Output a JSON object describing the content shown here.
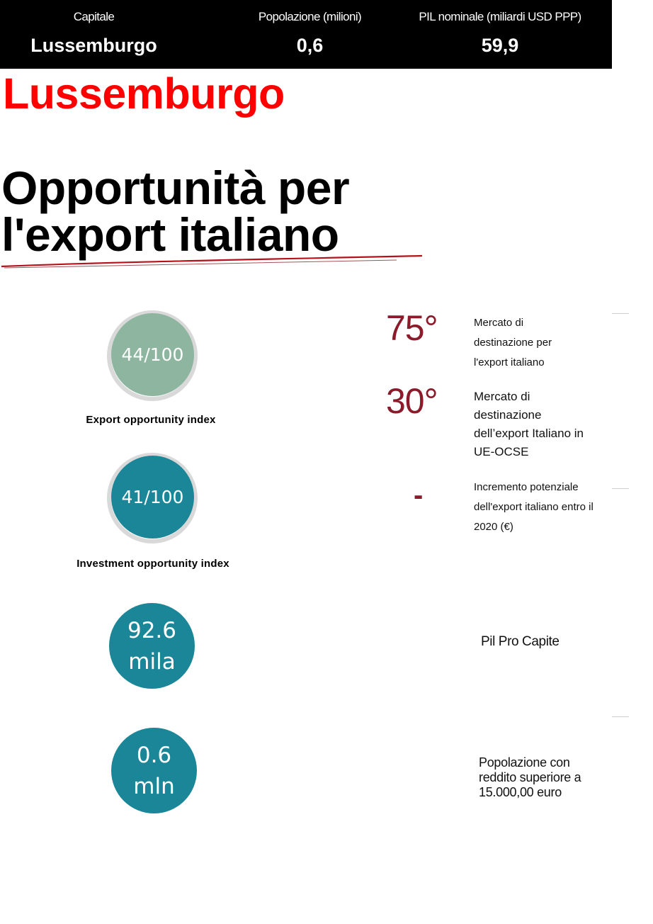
{
  "header": {
    "columns": [
      {
        "label": "Capitale",
        "value": "Lussemburgo"
      },
      {
        "label": "Popolazione (milioni)",
        "value": "0,6"
      },
      {
        "label": "PIL nominale (miliardi USD PPP)",
        "value": "59,9"
      }
    ]
  },
  "country_name": "Lussemburgo",
  "headline": "Opportunità per l'export italiano",
  "indicators": {
    "export_index": {
      "value_text": "44/100",
      "score": 44,
      "label": "Export opportunity index"
    },
    "investment_index": {
      "value_text": "41/100",
      "score": 41,
      "label": "Investment opportunity index"
    },
    "gdp_per_capita": {
      "value_line1": "92.6",
      "value_line2": "mila",
      "label": "Pil Pro Capite"
    },
    "population_income": {
      "value_line1": "0.6",
      "value_line2": "mln",
      "label": "Popolazione con reddito superiore a 15.000,00 euro"
    }
  },
  "rankings": [
    {
      "rank": "75°",
      "desc": "Mercato di destinazione per l'export italiano"
    },
    {
      "rank": "30°",
      "desc": "Mercato di destinazione dell’export Italiano in UE-OCSE"
    },
    {
      "rank": "-",
      "desc": "Incremento potenziale dell'export italiano entro il 2020 (€)"
    }
  ],
  "colors": {
    "export_circle": "#8db59f",
    "teal_circle": "#1b8698",
    "ring_track": "#d9d9d9",
    "rank_color": "#8b1a2b",
    "title_red": "#ff0000"
  }
}
